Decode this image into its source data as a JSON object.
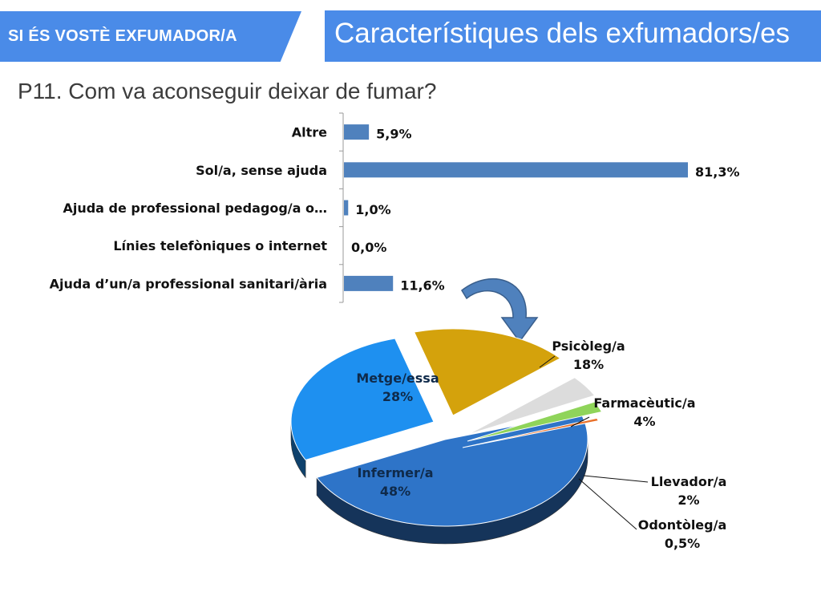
{
  "header": {
    "section_label": "SI ÉS VOSTÈ EXFUMADOR/A",
    "title": "Característiques dels exfumadors/es"
  },
  "question": "P11. Com va aconseguir deixar de fumar?",
  "colors": {
    "banner": "#4a8be8",
    "bar": "#4f81bd",
    "arrow": "#4f81bd"
  },
  "chart_data": [
    {
      "type": "bar",
      "orientation": "horizontal",
      "categories": [
        "Altre",
        "Sol/a, sense ajuda",
        "Ajuda de professional pedagog/a o…",
        "Línies telefòniques o internet",
        "Ajuda d’un/a professional sanitari/ària"
      ],
      "values": [
        5.9,
        81.3,
        1.0,
        0.0,
        11.6
      ],
      "data_labels": [
        "5,9%",
        "81,3%",
        "1,0%",
        "0,0%",
        "11,6%"
      ],
      "xlim": [
        0,
        100
      ]
    },
    {
      "type": "pie",
      "style": "3d-exploded",
      "slices": [
        {
          "label": "Infermer/a",
          "value": 48,
          "value_label": "48%",
          "color": "#2e74c8",
          "text_color": "#0f2a4a"
        },
        {
          "label": "Metge/essa",
          "value": 28,
          "value_label": "28%",
          "color": "#1e90f0",
          "text_color": "#0f2a4a"
        },
        {
          "label": "Psicòleg/a",
          "value": 18,
          "value_label": "18%",
          "color": "#d4a20c",
          "text_color": "#111111"
        },
        {
          "label": "Farmacèutic/a",
          "value": 4,
          "value_label": "4%",
          "color": "#dcdcdc",
          "text_color": "#111111"
        },
        {
          "label": "Llevador/a",
          "value": 2,
          "value_label": "2%",
          "color": "#8fd45a",
          "text_color": "#111111"
        },
        {
          "label": "Odontòleg/a",
          "value": 0.5,
          "value_label": "0,5%",
          "color": "#e8702a",
          "text_color": "#111111"
        }
      ]
    }
  ]
}
